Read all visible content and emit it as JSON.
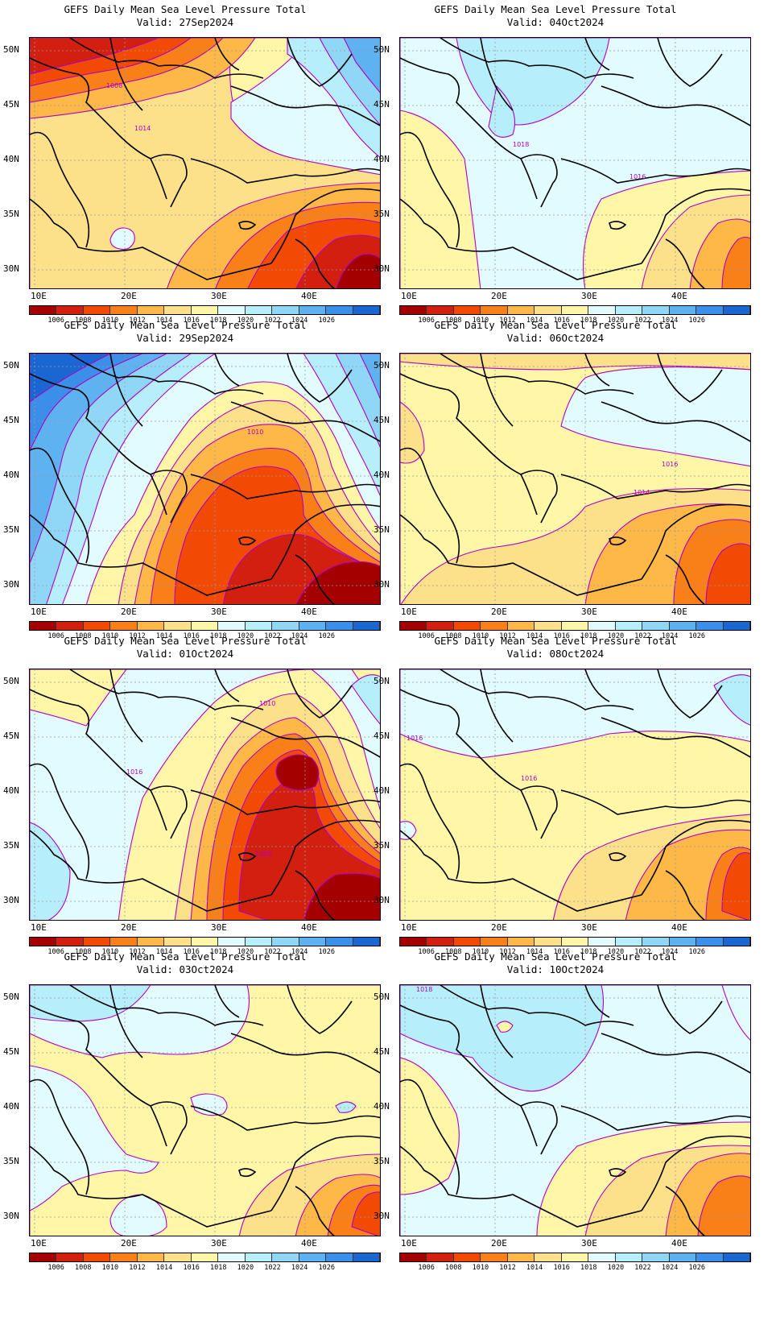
{
  "title_line1": "GEFS Daily Mean Sea Level Pressure Total",
  "panels": [
    {
      "valid": "Valid: 27Sep2024",
      "hint": "warm-west-east"
    },
    {
      "valid": "Valid: 04Oct2024",
      "hint": "cool"
    },
    {
      "valid": "Valid: 29Sep2024",
      "hint": "low-center"
    },
    {
      "valid": "Valid: 06Oct2024",
      "hint": "mild"
    },
    {
      "valid": "Valid: 01Oct2024",
      "hint": "low-black-sea"
    },
    {
      "valid": "Valid: 08Oct2024",
      "hint": "mild2"
    },
    {
      "valid": "Valid: 03Oct2024",
      "hint": "mild3"
    },
    {
      "valid": "Valid: 10Oct2024",
      "hint": "cool2"
    }
  ],
  "y_ticks": [
    "50N",
    "45N",
    "40N",
    "35N",
    "30N"
  ],
  "x_ticks": [
    "10E",
    "20E",
    "30E",
    "40E"
  ],
  "colorbar_labels": [
    "1006",
    "1008",
    "1010",
    "1012",
    "1014",
    "1016",
    "1018",
    "1020",
    "1022",
    "1024",
    "1026"
  ],
  "colorbar_colors": [
    "#a50000",
    "#d21f10",
    "#f24a05",
    "#f97f19",
    "#fdb848",
    "#fde08a",
    "#fff6a8",
    "#e2fbfe",
    "#b7eefb",
    "#90d7f7",
    "#5fb2f0",
    "#3b8fe8",
    "#1a66d3"
  ],
  "contour_labels": {
    "p0": [
      "1008",
      "1014"
    ],
    "p1": [
      "1018",
      "1016"
    ],
    "p2": [
      "1010"
    ],
    "p3": [
      "1016",
      "1014"
    ],
    "p4": [
      "1010",
      "1016",
      "1008"
    ],
    "p5": [
      "1016",
      "1016"
    ],
    "p6": [],
    "p7": [
      "1018"
    ]
  },
  "contour_color": "#b000c8"
}
